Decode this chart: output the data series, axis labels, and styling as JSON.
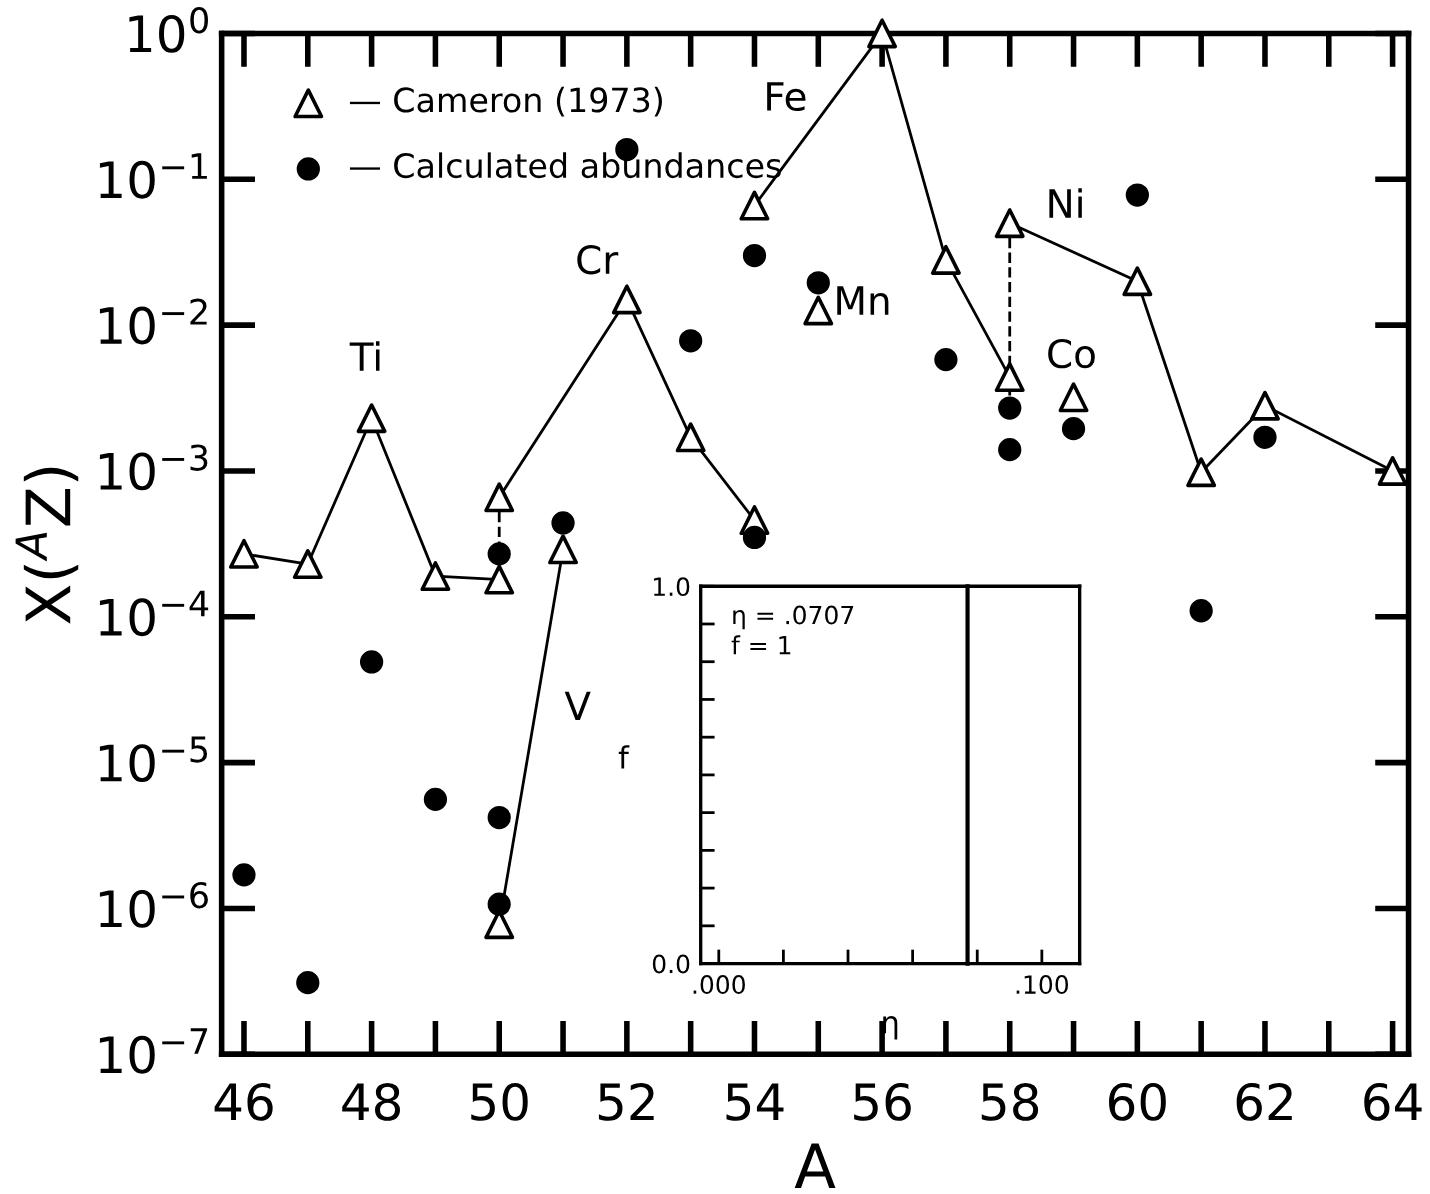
{
  "chart_data": [
    {
      "type": "scatter",
      "xlabel": "A",
      "ylabel": "X($^{A}$Z)",
      "log": "y",
      "xlim": [
        45.65,
        64.25
      ],
      "ylim": [
        1e-07,
        1
      ],
      "xticks": [
        46,
        48,
        50,
        52,
        54,
        56,
        58,
        60,
        62,
        64
      ],
      "yticks": [
        {
          "value": 1e-07,
          "label": "10$^{−7}$"
        },
        {
          "value": 1e-06,
          "label": "10$^{−6}$"
        },
        {
          "value": 1e-05,
          "label": "10$^{−5}$"
        },
        {
          "value": 0.0001,
          "label": "10$^{−4}$"
        },
        {
          "value": 0.001,
          "label": "10$^{−3}$"
        },
        {
          "value": 0.01,
          "label": "10$^{−2}$"
        },
        {
          "value": 0.1,
          "label": "10$^{−1}$"
        },
        {
          "value": 1,
          "label": "10$^{0}$"
        }
      ],
      "legend": "top left",
      "grid": false,
      "series": [
        {
          "type": "line",
          "color": "#000000",
          "marker": "none",
          "line_style": "solid",
          "x": [
            46,
            47,
            48,
            49,
            50
          ],
          "values": [
            0.00027,
            0.00023,
            0.0023,
            0.00019,
            0.00018
          ]
        },
        {
          "type": "line",
          "color": "#000000",
          "marker": "none",
          "line_style": "solid",
          "x": [
            50,
            52,
            53,
            54
          ],
          "values": [
            0.00066,
            0.015,
            0.0017,
            0.00046
          ]
        },
        {
          "type": "line",
          "color": "#000000",
          "marker": "none",
          "line_style": "solid",
          "x": [
            50,
            51
          ],
          "values": [
            7.8e-07,
            0.00029
          ]
        },
        {
          "type": "line",
          "color": "#000000",
          "marker": "none",
          "line_style": "solid",
          "x": [
            54,
            56,
            57,
            58
          ],
          "values": [
            0.066,
            1.0,
            0.028,
            0.0044
          ]
        },
        {
          "type": "line",
          "color": "#000000",
          "marker": "none",
          "line_style": "solid",
          "x": [
            58,
            60,
            61,
            62,
            64
          ],
          "values": [
            0.05,
            0.02,
            0.00098,
            0.0028,
            0.001
          ]
        },
        {
          "type": "line",
          "color": "#000000",
          "marker": "none",
          "line_style": "dashed",
          "x": [
            50,
            50
          ],
          "values": [
            0.00066,
            0.00027
          ]
        },
        {
          "type": "line",
          "color": "#000000",
          "marker": "none",
          "line_style": "dashed",
          "x": [
            58,
            58
          ],
          "values": [
            0.05,
            0.0027
          ]
        },
        {
          "type": "scatter",
          "name": "— Cameron (1973)",
          "color": "#000000",
          "marker": "triangle",
          "x": [
            46,
            47,
            48,
            49,
            50,
            50,
            50,
            51,
            52,
            53,
            54,
            54,
            55,
            56,
            57,
            58,
            58,
            59,
            60,
            61,
            62,
            64
          ],
          "values": [
            0.00027,
            0.00023,
            0.0023,
            0.00019,
            0.00066,
            0.00018,
            7.8e-07,
            0.00029,
            0.015,
            0.0017,
            0.00046,
            0.066,
            0.0126,
            1.0,
            0.028,
            0.05,
            0.0044,
            0.0032,
            0.02,
            0.00098,
            0.0028,
            0.001
          ]
        },
        {
          "type": "scatter",
          "name": "— Calculated abundances",
          "color": "#000000",
          "marker": "circle",
          "x": [
            46,
            47,
            48,
            49,
            50,
            50,
            50,
            51,
            52,
            53,
            54,
            54,
            55,
            57,
            58,
            58,
            59,
            60,
            61,
            62
          ],
          "values": [
            1.7e-06,
            3.1e-07,
            4.9e-05,
            5.6e-06,
            4.2e-06,
            1.07e-06,
            0.00027,
            0.00044,
            0.16,
            0.0078,
            0.03,
            0.00035,
            0.0195,
            0.0058,
            0.0027,
            0.0014,
            0.00195,
            0.078,
            0.00011,
            0.0017
          ]
        }
      ],
      "annotations": [
        "Ti",
        "Cr",
        "Fe",
        "V",
        "Mn",
        "Ni",
        "Co"
      ]
    },
    {
      "type": "line",
      "xlabel": "η",
      "ylabel": "f",
      "xlim": [
        -0.0056,
        0.1117
      ],
      "ylim": [
        0,
        1
      ],
      "xticks": [
        {
          "value": 0,
          "label": ".000"
        },
        {
          "value": 0.02,
          "label": null
        },
        {
          "value": 0.04,
          "label": null
        },
        {
          "value": 0.06,
          "label": null
        },
        {
          "value": 0.08,
          "label": null
        },
        {
          "value": 0.1,
          "label": ".100"
        }
      ],
      "yticks": [
        {
          "value": 0,
          "label": "0.0"
        },
        {
          "value": 0.1,
          "label": null
        },
        {
          "value": 0.2,
          "label": null
        },
        {
          "value": 0.3,
          "label": null
        },
        {
          "value": 0.4,
          "label": null
        },
        {
          "value": 0.5,
          "label": null
        },
        {
          "value": 0.6,
          "label": null
        },
        {
          "value": 0.7,
          "label": null
        },
        {
          "value": 0.8,
          "label": null
        },
        {
          "value": 0.9,
          "label": null
        },
        {
          "value": 1.0,
          "label": "1.0"
        }
      ],
      "series": [
        {
          "color": "#000000",
          "x": [
            0.077,
            0.077
          ],
          "values": [
            0,
            1
          ]
        }
      ],
      "annotations": [
        "η = .0707",
        "f = 1"
      ]
    }
  ]
}
